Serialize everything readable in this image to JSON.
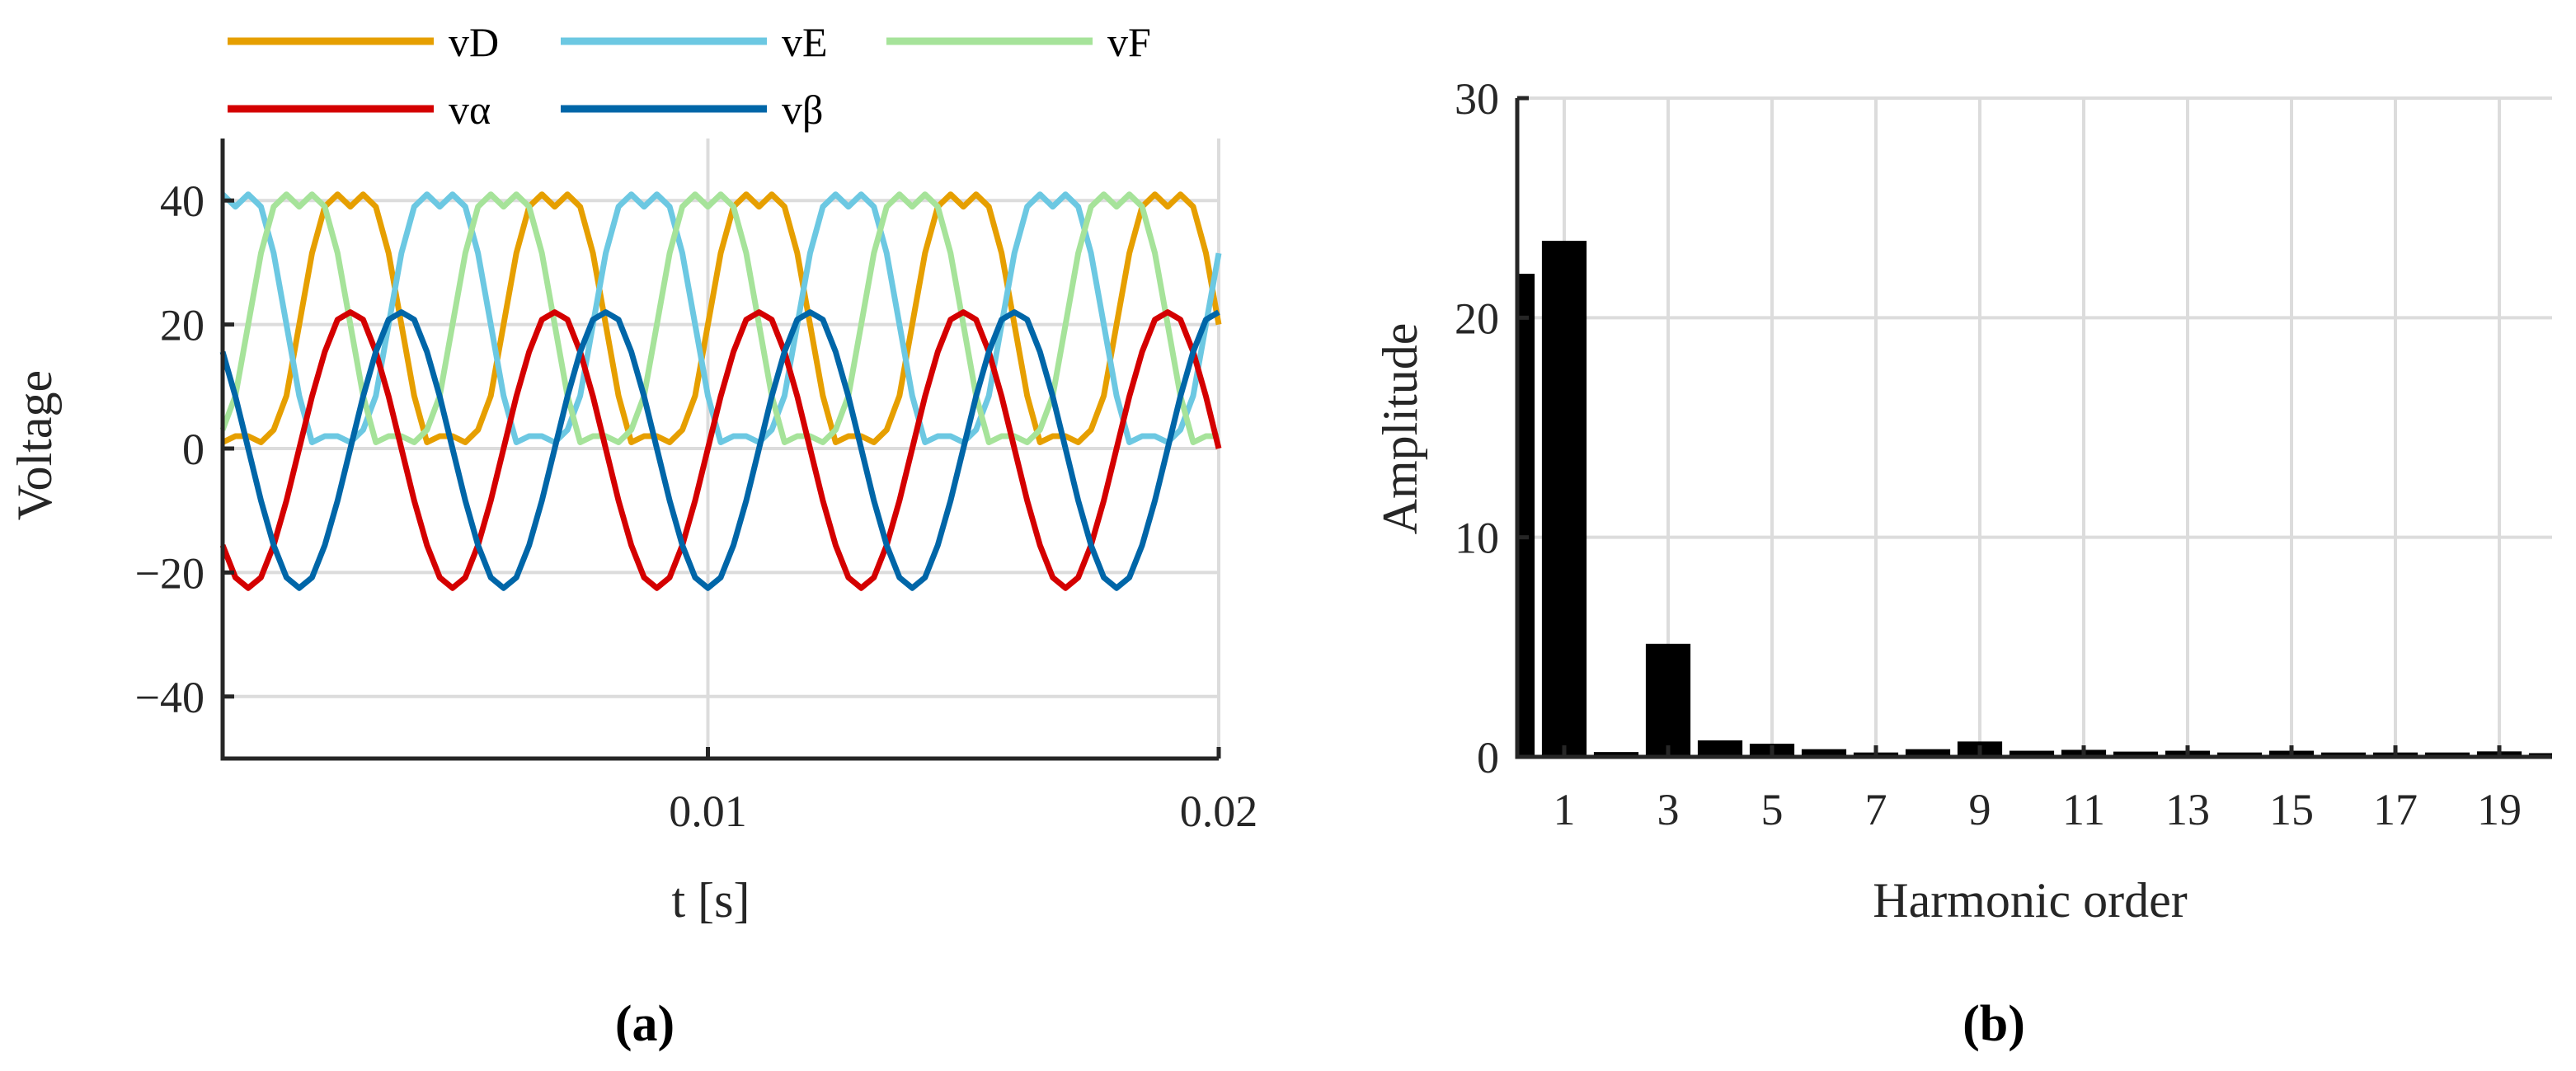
{
  "figure": {
    "panel_a_caption": "(a)",
    "panel_b_caption": "(b)"
  },
  "chart_data": [
    {
      "type": "line",
      "panel": "a",
      "title": "",
      "xlabel": "t [s]",
      "ylabel": "Voltage",
      "xlim": [
        0.0005,
        0.02
      ],
      "ylim": [
        -50,
        50
      ],
      "xticks": [
        0.01,
        0.02
      ],
      "xtick_labels": [
        "0.01",
        "0.02"
      ],
      "yticks": [
        -40,
        -20,
        0,
        20,
        40
      ],
      "ytick_labels": [
        "−40",
        "−20",
        "0",
        "20",
        "40"
      ],
      "grid": true,
      "legend_position": "top (outside), 3 columns",
      "x_start": 0.0005,
      "x_step": 0.00025,
      "series": [
        {
          "name": "vD",
          "legend_label": "vD",
          "color": "#E69F00",
          "values": [
            1,
            2,
            2,
            1,
            3,
            8.5,
            20,
            31.5,
            39,
            41,
            39,
            41,
            39,
            31.5,
            20,
            8.5,
            1,
            2,
            2,
            1,
            3,
            8.5,
            20,
            31.5,
            39,
            41,
            39,
            41,
            39,
            31.5,
            20,
            8.5,
            1,
            2,
            2,
            1,
            3,
            8.5,
            20,
            31.5,
            39,
            41,
            39,
            41,
            39,
            31.5,
            20,
            8.5,
            1,
            2,
            2,
            1,
            3,
            8.5,
            20,
            31.5,
            39,
            41,
            39,
            41,
            39,
            31.5,
            20,
            8.5,
            1,
            2,
            2,
            1,
            3,
            8.5,
            20,
            31.5,
            39,
            41,
            39,
            41,
            39,
            31.5,
            20
          ]
        },
        {
          "name": "vE",
          "legend_label": "vE",
          "color": "#6CC8E2",
          "values": [
            41,
            39,
            41,
            39,
            31.5,
            20,
            8.5,
            1,
            2,
            2,
            1,
            3,
            8.5,
            20,
            31.5,
            39,
            41,
            39,
            41,
            39,
            31.5,
            20,
            8.5,
            1,
            2,
            2,
            1,
            3,
            8.5,
            20,
            31.5,
            39,
            41,
            39,
            41,
            39,
            31.5,
            20,
            8.5,
            1,
            2,
            2,
            1,
            3,
            8.5,
            20,
            31.5,
            39,
            41,
            39,
            41,
            39,
            31.5,
            20,
            8.5,
            1,
            2,
            2,
            1,
            3,
            8.5,
            20,
            31.5,
            39,
            41,
            39,
            41,
            39,
            31.5,
            20,
            8.5,
            1,
            2,
            2,
            1,
            3,
            8.5,
            20,
            31.5
          ]
        },
        {
          "name": "vF",
          "legend_label": "vF",
          "color": "#A6E39A",
          "values": [
            3,
            8.5,
            20,
            31.5,
            39,
            41,
            39,
            41,
            39,
            31.5,
            20,
            8.5,
            1,
            2,
            2,
            1,
            3,
            8.5,
            20,
            31.5,
            39,
            41,
            39,
            41,
            39,
            31.5,
            20,
            8.5,
            1,
            2,
            2,
            1,
            3,
            8.5,
            20,
            31.5,
            39,
            41,
            39,
            41,
            39,
            31.5,
            20,
            8.5,
            1,
            2,
            2,
            1,
            3,
            8.5,
            20,
            31.5,
            39,
            41,
            39,
            41,
            39,
            31.5,
            20,
            8.5,
            1,
            2,
            2,
            1,
            3,
            8.5,
            20,
            31.5,
            39,
            41,
            39,
            41,
            39,
            31.5,
            20,
            8.5,
            1,
            2,
            2
          ]
        },
        {
          "name": "vα",
          "legend_label": "vα",
          "color": "#D40000",
          "values": [
            -15.6,
            -20.8,
            -22.5,
            -20.8,
            -15.6,
            -8.4,
            0,
            8.4,
            15.6,
            20.8,
            22,
            20.8,
            15.6,
            8.4,
            0,
            -8.4,
            -15.6,
            -20.8,
            -22.5,
            -20.8,
            -15.6,
            -8.4,
            0,
            8.4,
            15.6,
            20.8,
            22,
            20.8,
            15.6,
            8.4,
            0,
            -8.4,
            -15.6,
            -20.8,
            -22.5,
            -20.8,
            -15.6,
            -8.4,
            0,
            8.4,
            15.6,
            20.8,
            22,
            20.8,
            15.6,
            8.4,
            0,
            -8.4,
            -15.6,
            -20.8,
            -22.5,
            -20.8,
            -15.6,
            -8.4,
            0,
            8.4,
            15.6,
            20.8,
            22,
            20.8,
            15.6,
            8.4,
            0,
            -8.4,
            -15.6,
            -20.8,
            -22.5,
            -20.8,
            -15.6,
            -8.4,
            0,
            8.4,
            15.6,
            20.8,
            22,
            20.8,
            15.6,
            8.4,
            0
          ]
        },
        {
          "name": "vβ",
          "legend_label": "vβ",
          "color": "#0066A8",
          "values": [
            15.6,
            8.4,
            0,
            -8.4,
            -15.6,
            -20.8,
            -22.5,
            -20.8,
            -15.6,
            -8.4,
            0,
            8.4,
            15.6,
            20.8,
            22,
            20.8,
            15.6,
            8.4,
            0,
            -8.4,
            -15.6,
            -20.8,
            -22.5,
            -20.8,
            -15.6,
            -8.4,
            0,
            8.4,
            15.6,
            20.8,
            22,
            20.8,
            15.6,
            8.4,
            0,
            -8.4,
            -15.6,
            -20.8,
            -22.5,
            -20.8,
            -15.6,
            -8.4,
            0,
            8.4,
            15.6,
            20.8,
            22,
            20.8,
            15.6,
            8.4,
            0,
            -8.4,
            -15.6,
            -20.8,
            -22.5,
            -20.8,
            -15.6,
            -8.4,
            0,
            8.4,
            15.6,
            20.8,
            22,
            20.8,
            15.6,
            8.4,
            0,
            -8.4,
            -15.6,
            -20.8,
            -22.5,
            -20.8,
            -15.6,
            -8.4,
            0,
            8.4,
            15.6,
            20.8,
            22
          ]
        }
      ]
    },
    {
      "type": "bar",
      "panel": "b",
      "title": "",
      "xlabel": "Harmonic order",
      "ylabel": "Amplitude",
      "xlim": [
        0.1,
        20.4
      ],
      "ylim": [
        0,
        30
      ],
      "xticks": [
        1,
        3,
        5,
        7,
        9,
        11,
        13,
        15,
        17,
        19
      ],
      "xtick_labels": [
        "1",
        "3",
        "5",
        "7",
        "9",
        "11",
        "13",
        "15",
        "17",
        "19"
      ],
      "yticks": [
        0,
        10,
        20,
        30
      ],
      "ytick_labels": [
        "0",
        "10",
        "20",
        "30"
      ],
      "grid": true,
      "bar_color": "#000000",
      "categories": [
        0,
        1,
        2,
        3,
        4,
        5,
        6,
        7,
        8,
        9,
        10,
        11,
        12,
        13,
        14,
        15,
        16,
        17,
        18,
        19,
        20
      ],
      "values": [
        22.0,
        23.5,
        0.22,
        5.15,
        0.75,
        0.6,
        0.35,
        0.2,
        0.35,
        0.7,
        0.28,
        0.32,
        0.24,
        0.28,
        0.2,
        0.28,
        0.2,
        0.2,
        0.2,
        0.25,
        0.17
      ]
    }
  ]
}
